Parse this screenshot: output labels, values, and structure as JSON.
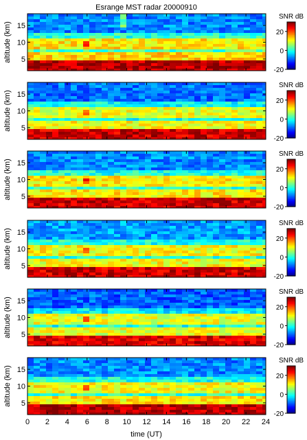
{
  "chart_data": {
    "type": "heatmap",
    "title": "Esrange MST radar 20000910",
    "xlabel": "time (UT)",
    "ylabel": "altitude (km)",
    "x_range": [
      0,
      24
    ],
    "y_range": [
      1.5,
      18.5
    ],
    "x_ticks": [
      0,
      2,
      4,
      6,
      8,
      10,
      12,
      14,
      16,
      18,
      20,
      22,
      24
    ],
    "y_ticks": [
      5,
      10,
      15
    ],
    "colorbar": {
      "label": "SNR dB",
      "range": [
        -20,
        30
      ],
      "ticks": [
        -20,
        0,
        20
      ],
      "colormap": "jet"
    },
    "panels": [
      {
        "name": "panel-1",
        "layers": [
          {
            "from_km": 1.5,
            "to_km": 4.2,
            "snr_db": 27
          },
          {
            "from_km": 4.2,
            "to_km": 6.8,
            "snr_db": 13
          },
          {
            "from_km": 6.8,
            "to_km": 8.0,
            "snr_db": 2
          },
          {
            "from_km": 8.0,
            "to_km": 11.0,
            "snr_db": 12
          },
          {
            "from_km": 11.0,
            "to_km": 13.0,
            "snr_db": 1
          },
          {
            "from_km": 13.0,
            "to_km": 18.5,
            "snr_db": -7
          }
        ],
        "features": [
          {
            "time_ut": 6.2,
            "from_km": 3,
            "to_km": 18.5,
            "snr_db": 3
          },
          {
            "time_ut": 9.7,
            "from_km": 14,
            "to_km": 18.5,
            "snr_db": 4
          },
          {
            "time_ut": 5.8,
            "from_km": 8.5,
            "to_km": 10.5,
            "snr_db": 20
          },
          {
            "time_ut": 12.5,
            "from_km": 3,
            "to_km": 8.5,
            "snr_db": 12
          },
          {
            "time_ut": 17.5,
            "from_km": 2,
            "to_km": 3.5,
            "snr_db": 29
          },
          {
            "time_ut": 19.0,
            "from_km": 2,
            "to_km": 3.5,
            "snr_db": 29
          },
          {
            "time_ut": 21.0,
            "from_km": 2,
            "to_km": 3.5,
            "snr_db": 29
          }
        ]
      },
      {
        "name": "panel-2",
        "layers": [
          {
            "from_km": 1.5,
            "to_km": 4.2,
            "snr_db": 26
          },
          {
            "from_km": 4.2,
            "to_km": 6.8,
            "snr_db": 11
          },
          {
            "from_km": 6.8,
            "to_km": 8.0,
            "snr_db": 0
          },
          {
            "from_km": 8.0,
            "to_km": 11.0,
            "snr_db": 10
          },
          {
            "from_km": 11.0,
            "to_km": 13.0,
            "snr_db": -1
          },
          {
            "from_km": 13.0,
            "to_km": 18.5,
            "snr_db": -8
          }
        ],
        "features": [
          {
            "time_ut": 6.2,
            "from_km": 3,
            "to_km": 18.5,
            "snr_db": 2
          },
          {
            "time_ut": 5.8,
            "from_km": 8.5,
            "to_km": 10.5,
            "snr_db": 18
          },
          {
            "time_ut": 12.5,
            "from_km": 3,
            "to_km": 7,
            "snr_db": 12
          },
          {
            "time_ut": 17.5,
            "from_km": 8.5,
            "to_km": 10,
            "snr_db": 18
          },
          {
            "time_ut": 17.5,
            "from_km": 2,
            "to_km": 3.5,
            "snr_db": 29
          },
          {
            "time_ut": 20.5,
            "from_km": 2,
            "to_km": 3.5,
            "snr_db": 28
          }
        ]
      },
      {
        "name": "panel-3",
        "layers": [
          {
            "from_km": 1.5,
            "to_km": 4.2,
            "snr_db": 26
          },
          {
            "from_km": 4.2,
            "to_km": 6.8,
            "snr_db": 12
          },
          {
            "from_km": 6.8,
            "to_km": 8.0,
            "snr_db": 1
          },
          {
            "from_km": 8.0,
            "to_km": 11.0,
            "snr_db": 12
          },
          {
            "from_km": 11.0,
            "to_km": 13.0,
            "snr_db": 0
          },
          {
            "from_km": 13.0,
            "to_km": 18.5,
            "snr_db": -7
          }
        ],
        "features": [
          {
            "time_ut": 6.2,
            "from_km": 3,
            "to_km": 18.5,
            "snr_db": 3
          },
          {
            "time_ut": 5.8,
            "from_km": 8.5,
            "to_km": 10.5,
            "snr_db": 21
          },
          {
            "time_ut": 12.5,
            "from_km": 3,
            "to_km": 8,
            "snr_db": 13
          },
          {
            "time_ut": 17.5,
            "from_km": 8.5,
            "to_km": 10,
            "snr_db": 20
          },
          {
            "time_ut": 18.0,
            "from_km": 2,
            "to_km": 3.5,
            "snr_db": 28
          }
        ]
      },
      {
        "name": "panel-4",
        "layers": [
          {
            "from_km": 1.5,
            "to_km": 4.2,
            "snr_db": 26
          },
          {
            "from_km": 4.2,
            "to_km": 6.8,
            "snr_db": 11
          },
          {
            "from_km": 6.8,
            "to_km": 8.0,
            "snr_db": 1
          },
          {
            "from_km": 8.0,
            "to_km": 11.0,
            "snr_db": 11
          },
          {
            "from_km": 11.0,
            "to_km": 13.0,
            "snr_db": 0
          },
          {
            "from_km": 13.0,
            "to_km": 18.5,
            "snr_db": -6
          }
        ],
        "features": [
          {
            "time_ut": 6.2,
            "from_km": 3,
            "to_km": 18.5,
            "snr_db": 2
          },
          {
            "time_ut": 5.8,
            "from_km": 8.5,
            "to_km": 10.5,
            "snr_db": 20
          },
          {
            "time_ut": 12.5,
            "from_km": 3,
            "to_km": 8,
            "snr_db": 12
          },
          {
            "time_ut": 17.5,
            "from_km": 2,
            "to_km": 3.5,
            "snr_db": 29
          },
          {
            "time_ut": 21.5,
            "from_km": 2,
            "to_km": 3.5,
            "snr_db": 29
          }
        ]
      },
      {
        "name": "panel-5",
        "layers": [
          {
            "from_km": 1.5,
            "to_km": 4.2,
            "snr_db": 25
          },
          {
            "from_km": 4.2,
            "to_km": 6.8,
            "snr_db": 10
          },
          {
            "from_km": 6.8,
            "to_km": 8.0,
            "snr_db": 0
          },
          {
            "from_km": 8.0,
            "to_km": 11.0,
            "snr_db": 10
          },
          {
            "from_km": 11.0,
            "to_km": 13.0,
            "snr_db": -2
          },
          {
            "from_km": 13.0,
            "to_km": 18.5,
            "snr_db": -9
          }
        ],
        "features": [
          {
            "time_ut": 6.2,
            "from_km": 3,
            "to_km": 18.5,
            "snr_db": 3
          },
          {
            "time_ut": 5.8,
            "from_km": 8.5,
            "to_km": 10.5,
            "snr_db": 19
          },
          {
            "time_ut": 12.5,
            "from_km": 3,
            "to_km": 7,
            "snr_db": 11
          },
          {
            "time_ut": 17.0,
            "from_km": 2,
            "to_km": 3.5,
            "snr_db": 28
          }
        ]
      },
      {
        "name": "panel-6",
        "layers": [
          {
            "from_km": 1.5,
            "to_km": 4.2,
            "snr_db": 27
          },
          {
            "from_km": 4.2,
            "to_km": 6.8,
            "snr_db": 12
          },
          {
            "from_km": 6.8,
            "to_km": 8.0,
            "snr_db": 1
          },
          {
            "from_km": 8.0,
            "to_km": 11.0,
            "snr_db": 11
          },
          {
            "from_km": 11.0,
            "to_km": 13.0,
            "snr_db": 0
          },
          {
            "from_km": 13.0,
            "to_km": 18.5,
            "snr_db": -7
          }
        ],
        "features": [
          {
            "time_ut": 6.2,
            "from_km": 3,
            "to_km": 18.5,
            "snr_db": 3
          },
          {
            "time_ut": 5.8,
            "from_km": 8.5,
            "to_km": 10.5,
            "snr_db": 20
          },
          {
            "time_ut": 12.5,
            "from_km": 3,
            "to_km": 8,
            "snr_db": 12
          },
          {
            "time_ut": 17.5,
            "from_km": 8.5,
            "to_km": 10,
            "snr_db": 19
          },
          {
            "time_ut": 18.0,
            "from_km": 2,
            "to_km": 3.5,
            "snr_db": 29
          }
        ]
      }
    ]
  }
}
